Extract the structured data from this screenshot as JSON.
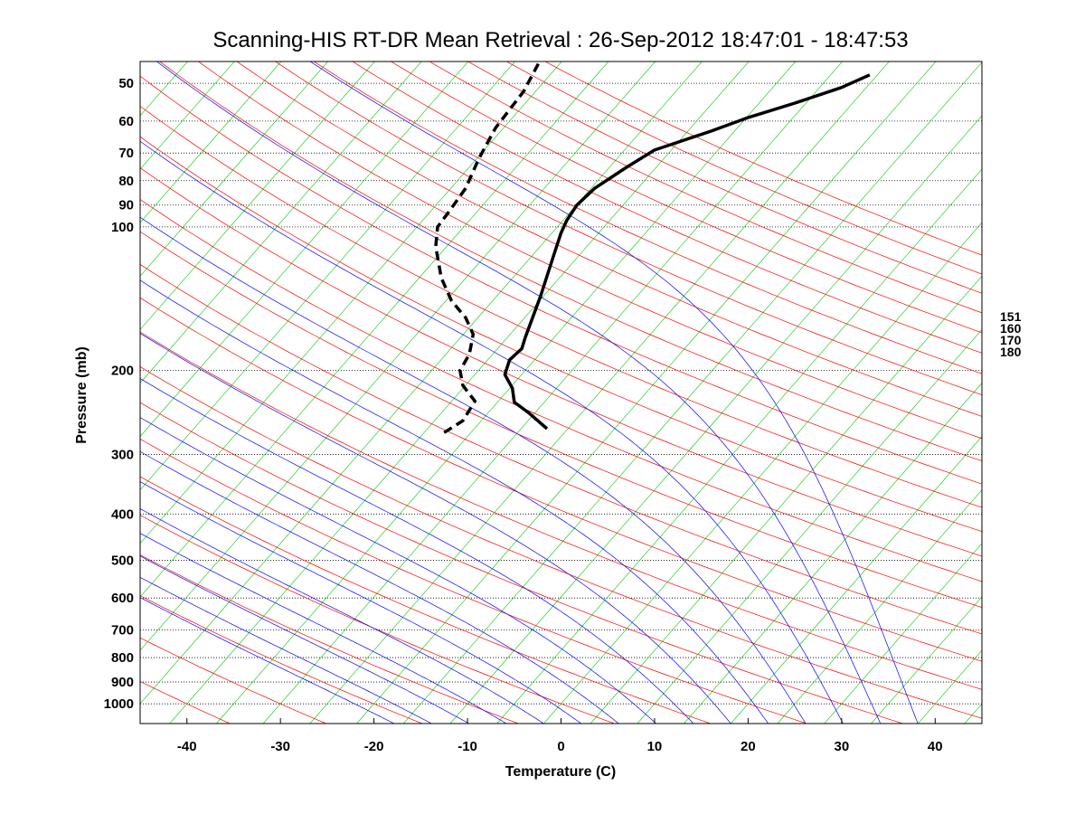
{
  "chart_data": {
    "type": "line",
    "title": "Scanning-HIS RT-DR Mean Retrieval : 26-Sep-2012 18:47:01 - 18:47:53",
    "xlabel": "Temperature (C)",
    "ylabel": "Pressure (mb)",
    "xlim": [
      -45,
      45
    ],
    "ylim": [
      1100,
      45
    ],
    "y_scale": "log",
    "x_ticks": [
      -40,
      -30,
      -20,
      -10,
      0,
      10,
      20,
      30,
      40
    ],
    "y_ticks": [
      50,
      60,
      70,
      80,
      90,
      100,
      200,
      300,
      400,
      500,
      600,
      700,
      800,
      900,
      1000
    ],
    "grid": "horizontal dotted at pressure ticks",
    "side_labels": [
      "151",
      "160",
      "170",
      "180"
    ],
    "colors": {
      "axes": "#000000",
      "grid": "#000000",
      "dry_adiabats": "#ff0000",
      "moist_adiabats": "#0000ff",
      "isotherms": "#00cc00",
      "temperature": "#000000",
      "dewpoint": "#000000"
    },
    "series": [
      {
        "style": "solid",
        "points": [
          {
            "p": 265,
            "t": -1.5
          },
          {
            "p": 245,
            "t": -3.5
          },
          {
            "p": 233,
            "t": -5
          },
          {
            "p": 218,
            "t": -5.2
          },
          {
            "p": 204,
            "t": -6
          },
          {
            "p": 190,
            "t": -5.5
          },
          {
            "p": 180,
            "t": -4.2
          },
          {
            "p": 170,
            "t": -3.8
          },
          {
            "p": 140,
            "t": -2.2
          },
          {
            "p": 115,
            "t": -0.8
          },
          {
            "p": 103,
            "t": 0
          },
          {
            "p": 97,
            "t": 0.6
          },
          {
            "p": 90,
            "t": 1.7
          },
          {
            "p": 83,
            "t": 3.6
          },
          {
            "p": 75,
            "t": 7
          },
          {
            "p": 69,
            "t": 10
          },
          {
            "p": 63,
            "t": 16
          },
          {
            "p": 59,
            "t": 20
          },
          {
            "p": 55,
            "t": 25
          },
          {
            "p": 51,
            "t": 30
          },
          {
            "p": 48,
            "t": 33
          }
        ]
      },
      {
        "style": "dashed",
        "points": [
          {
            "p": 270,
            "t": -12.5
          },
          {
            "p": 255,
            "t": -10.5
          },
          {
            "p": 232,
            "t": -9.2
          },
          {
            "p": 215,
            "t": -10.5
          },
          {
            "p": 200,
            "t": -10.8
          },
          {
            "p": 185,
            "t": -9.8
          },
          {
            "p": 168,
            "t": -9.4
          },
          {
            "p": 155,
            "t": -10.2
          },
          {
            "p": 143,
            "t": -11.7
          },
          {
            "p": 128,
            "t": -12.8
          },
          {
            "p": 110,
            "t": -13.4
          },
          {
            "p": 100,
            "t": -13.2
          },
          {
            "p": 93,
            "t": -12
          },
          {
            "p": 83,
            "t": -10.2
          },
          {
            "p": 72,
            "t": -8.8
          },
          {
            "p": 62,
            "t": -7
          },
          {
            "p": 52,
            "t": -4
          },
          {
            "p": 45,
            "t": -2.3
          }
        ]
      }
    ]
  }
}
